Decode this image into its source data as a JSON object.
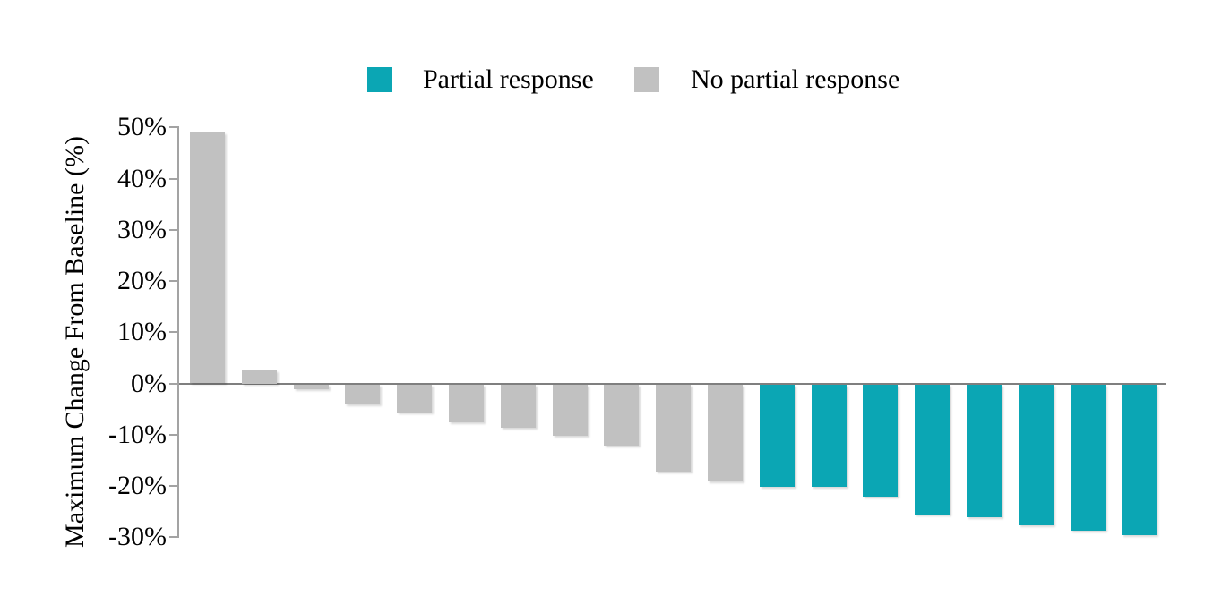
{
  "legend": {
    "items": [
      {
        "label": "Partial response",
        "color": "#0ba6b4"
      },
      {
        "label": "No partial response",
        "color": "#c1c1c1"
      }
    ]
  },
  "chart_data": {
    "type": "bar",
    "subtype": "waterfall",
    "title": "",
    "xlabel": "",
    "ylabel": "Maximum Change From Baseline (%)",
    "ylim": [
      -30,
      50
    ],
    "grid": false,
    "legend_position": "top",
    "yticks": [
      {
        "value": 50,
        "label": "50%"
      },
      {
        "value": 40,
        "label": "40%"
      },
      {
        "value": 30,
        "label": "30%"
      },
      {
        "value": 20,
        "label": "20%"
      },
      {
        "value": 10,
        "label": "10%"
      },
      {
        "value": 0,
        "label": "0%"
      },
      {
        "value": -10,
        "label": "-10%"
      },
      {
        "value": -20,
        "label": "-20%"
      },
      {
        "value": -30,
        "label": "-30%"
      }
    ],
    "series": [
      {
        "name": "Partial response",
        "color": "#0ba6b4"
      },
      {
        "name": "No partial response",
        "color": "#c1c1c1"
      }
    ],
    "bars": [
      {
        "value": 49,
        "series": "No partial response"
      },
      {
        "value": 2.5,
        "series": "No partial response"
      },
      {
        "value": -1,
        "series": "No partial response"
      },
      {
        "value": -4,
        "series": "No partial response"
      },
      {
        "value": -5.5,
        "series": "No partial response"
      },
      {
        "value": -7.5,
        "series": "No partial response"
      },
      {
        "value": -8.5,
        "series": "No partial response"
      },
      {
        "value": -10,
        "series": "No partial response"
      },
      {
        "value": -12,
        "series": "No partial response"
      },
      {
        "value": -17,
        "series": "No partial response"
      },
      {
        "value": -19,
        "series": "No partial response"
      },
      {
        "value": -20,
        "series": "Partial response"
      },
      {
        "value": -20,
        "series": "Partial response"
      },
      {
        "value": -22,
        "series": "Partial response"
      },
      {
        "value": -25.5,
        "series": "Partial response"
      },
      {
        "value": -26,
        "series": "Partial response"
      },
      {
        "value": -27.5,
        "series": "Partial response"
      },
      {
        "value": -28.5,
        "series": "Partial response"
      },
      {
        "value": -29.5,
        "series": "Partial response"
      }
    ],
    "colors": {
      "axis": "#a3a3a3",
      "baseline": "#7f7f7f",
      "text": "#000000"
    }
  }
}
